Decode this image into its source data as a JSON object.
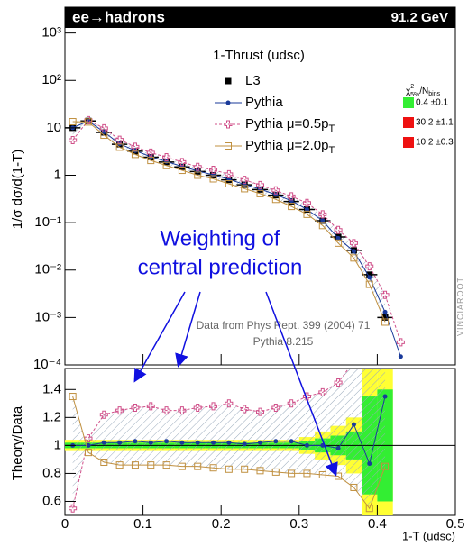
{
  "chart_data": [
    {
      "type": "line",
      "title": "ee→hadrons",
      "energy": "91.2 GeV",
      "subtitle": "1-Thrust (udsc)",
      "ylabel": "1/σ dσ/d(1-T)",
      "log_y": true,
      "annotations": [
        "Weighting of",
        "central prediction",
        "Data from Phys Rept. 399 (2004) 71",
        "Pythia 8.215",
        "VINCIAROOT"
      ],
      "chi2_header": [
        "χ",
        "2",
        "5%",
        "/N",
        "bins"
      ],
      "x": [
        0.01,
        0.03,
        0.05,
        0.07,
        0.09,
        0.11,
        0.13,
        0.15,
        0.17,
        0.19,
        0.21,
        0.23,
        0.25,
        0.27,
        0.29,
        0.31,
        0.33,
        0.35,
        0.37,
        0.39,
        0.41,
        0.43
      ],
      "xerr": 0.01,
      "xlim": [
        0,
        0.5
      ],
      "ylim": [
        0.0001,
        3500
      ],
      "yticks": [
        {
          "value": 0.0001,
          "label": "10⁻⁴"
        },
        {
          "value": 0.001,
          "label": "10⁻³"
        },
        {
          "value": 0.01,
          "label": "10⁻²"
        },
        {
          "value": 0.1,
          "label": "10⁻¹"
        },
        1,
        10,
        {
          "value": 100,
          "label": "10²"
        },
        {
          "value": 1000,
          "label": "10³"
        }
      ],
      "series": [
        {
          "name": "L3",
          "color": "#000000",
          "marker": "square",
          "values": [
            10,
            14,
            8,
            4.5,
            3.2,
            2.4,
            1.9,
            1.5,
            1.2,
            1.0,
            0.8,
            0.63,
            0.5,
            0.38,
            0.28,
            0.19,
            0.11,
            0.05,
            0.026,
            0.008,
            0.001,
            null
          ]
        },
        {
          "name": "Pythia",
          "color": "#1a3a9a",
          "marker": "circle",
          "chi2": "0.4 ±0.1",
          "chi2_color": "#33ee33",
          "values": [
            10,
            14,
            8.2,
            4.6,
            3.3,
            2.45,
            1.95,
            1.53,
            1.23,
            1.02,
            0.82,
            0.64,
            0.51,
            0.39,
            0.29,
            0.19,
            0.11,
            0.047,
            0.025,
            0.007,
            0.0013,
            0.00015
          ]
        },
        {
          "name": "Pythia μ=0.5p",
          "name_sub": "T",
          "color": "#d0508a",
          "marker": "cross",
          "dash": true,
          "chi2": "30.2 ±1.1",
          "chi2_color": "#ee1111",
          "values": [
            5.5,
            14.5,
            9.8,
            5.6,
            4.0,
            3.0,
            2.4,
            1.9,
            1.5,
            1.3,
            1.05,
            0.8,
            0.62,
            0.48,
            0.36,
            0.26,
            0.15,
            0.07,
            0.037,
            0.012,
            0.003,
            0.0003
          ]
        },
        {
          "name": "Pythia μ=2.0p",
          "name_sub": "T",
          "color": "#c09040",
          "marker": "square-open",
          "chi2": "10.2 ±0.3",
          "chi2_color": "#ee1111",
          "values": [
            13.5,
            13.3,
            7.0,
            3.9,
            2.75,
            2.05,
            1.6,
            1.27,
            1.0,
            0.84,
            0.66,
            0.52,
            0.41,
            0.31,
            0.22,
            0.15,
            0.087,
            0.037,
            0.018,
            0.005,
            0.0008,
            null
          ]
        }
      ]
    },
    {
      "type": "ratio",
      "ylabel": "Theory/Data",
      "xlabel": "1-T (udsc)",
      "x": [
        0.01,
        0.03,
        0.05,
        0.07,
        0.09,
        0.11,
        0.13,
        0.15,
        0.17,
        0.19,
        0.21,
        0.23,
        0.25,
        0.27,
        0.29,
        0.31,
        0.33,
        0.35,
        0.37,
        0.39,
        0.41
      ],
      "xlim": [
        0,
        0.5
      ],
      "xticks": [
        0,
        0.1,
        0.2,
        0.3,
        0.4,
        0.5
      ],
      "ylim": [
        0.5,
        1.55
      ],
      "yticks": [
        0.6,
        0.8,
        1,
        1.2,
        1.4
      ],
      "reference": 1,
      "data_err_1sigma": [
        0.02,
        0.02,
        0.02,
        0.02,
        0.02,
        0.02,
        0.02,
        0.02,
        0.02,
        0.02,
        0.02,
        0.02,
        0.02,
        0.02,
        0.02,
        0.03,
        0.05,
        0.07,
        0.1,
        0.35,
        0.4
      ],
      "data_err_2sigma": [
        0.04,
        0.04,
        0.04,
        0.04,
        0.04,
        0.04,
        0.04,
        0.04,
        0.04,
        0.04,
        0.04,
        0.04,
        0.04,
        0.04,
        0.04,
        0.06,
        0.1,
        0.14,
        0.2,
        0.7,
        0.8
      ],
      "series": [
        {
          "name": "Pythia",
          "color": "#1a3a9a",
          "marker": "circle",
          "values": [
            1.0,
            1.0,
            1.02,
            1.02,
            1.03,
            1.02,
            1.03,
            1.02,
            1.02,
            1.02,
            1.02,
            1.01,
            1.02,
            1.03,
            1.03,
            1.0,
            1.0,
            0.98,
            1.15,
            0.87,
            1.35
          ]
        },
        {
          "name": "Pythia μ=0.5p",
          "color": "#d0508a",
          "marker": "cross",
          "dash": true,
          "values": [
            0.55,
            1.05,
            1.22,
            1.25,
            1.27,
            1.28,
            1.25,
            1.25,
            1.27,
            1.28,
            1.3,
            1.26,
            1.24,
            1.27,
            1.3,
            1.35,
            1.38,
            1.45,
            1.6,
            1.6,
            1.6
          ]
        },
        {
          "name": "Pythia μ=2.0p",
          "color": "#c09040",
          "marker": "square-open",
          "values": [
            1.35,
            0.95,
            0.88,
            0.86,
            0.86,
            0.86,
            0.86,
            0.85,
            0.85,
            0.84,
            0.83,
            0.83,
            0.82,
            0.81,
            0.8,
            0.8,
            0.79,
            0.78,
            0.7,
            0.55,
            0.85
          ]
        }
      ]
    }
  ]
}
